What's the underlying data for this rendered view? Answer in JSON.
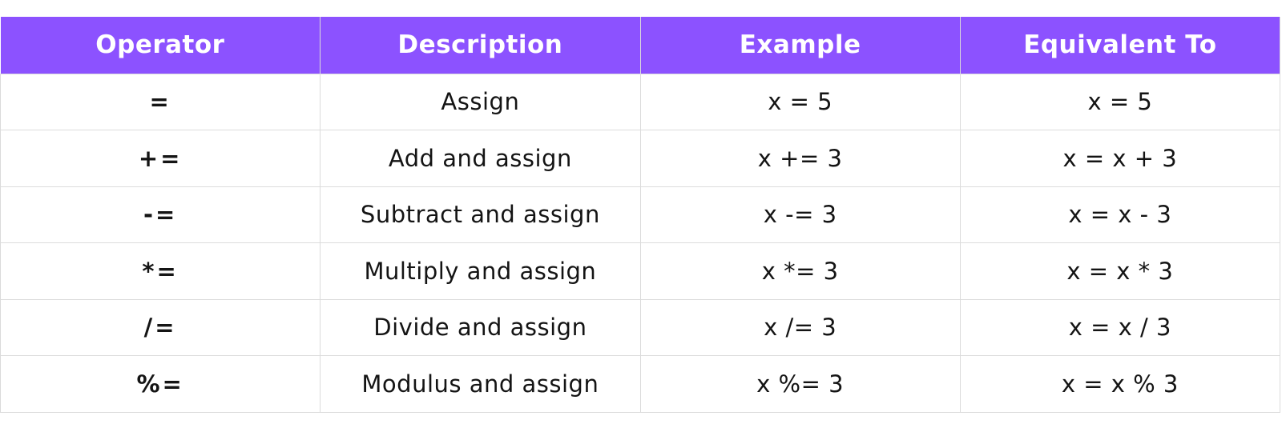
{
  "colors": {
    "accent": "#8C52FF",
    "border": "#DBDBDB",
    "text": "#141414",
    "header_text": "#FFFFFF",
    "background": "#FFFFFF"
  },
  "chart_data": {
    "type": "table",
    "columns": [
      "Operator",
      "Description",
      "Example",
      "Equivalent To"
    ],
    "rows": [
      [
        "=",
        "Assign",
        "x = 5",
        "x = 5"
      ],
      [
        "+=",
        "Add and assign",
        "x += 3",
        "x = x + 3"
      ],
      [
        "-=",
        "Subtract and assign",
        "x -= 3",
        "x = x - 3"
      ],
      [
        "*=",
        "Multiply and assign",
        "x *= 3",
        "x = x * 3"
      ],
      [
        "/=",
        "Divide and assign",
        "x /= 3",
        "x = x / 3"
      ],
      [
        "%=",
        "Modulus and assign",
        "x %= 3",
        "x = x % 3"
      ]
    ]
  }
}
